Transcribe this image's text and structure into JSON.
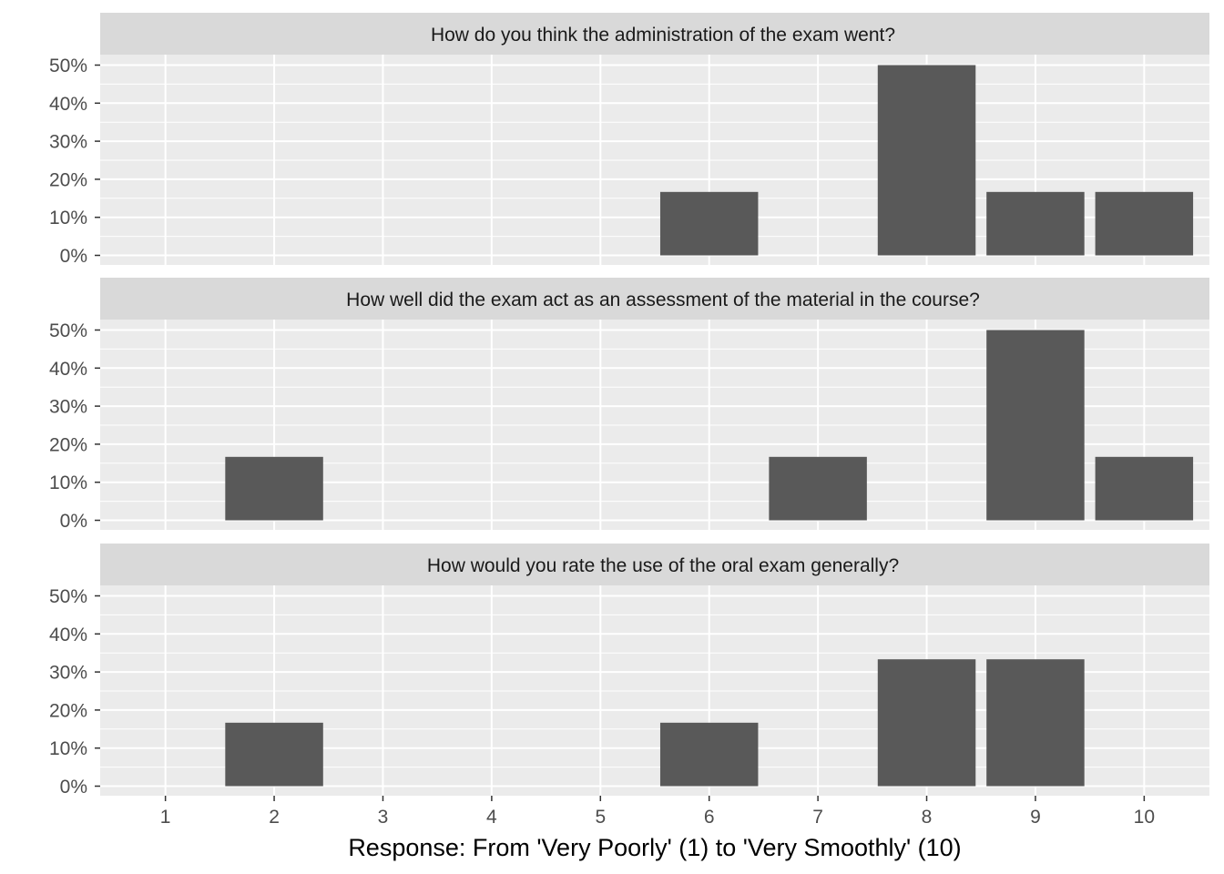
{
  "chart_data": {
    "type": "bar",
    "xlabel": "Response: From 'Very Poorly' (1) to 'Very Smoothly' (10)",
    "x_ticks": [
      "1",
      "2",
      "3",
      "4",
      "5",
      "6",
      "7",
      "8",
      "9",
      "10"
    ],
    "y_ticks": [
      "0%",
      "10%",
      "20%",
      "30%",
      "40%",
      "50%"
    ],
    "ylim": [
      0,
      0.5
    ],
    "grid": true,
    "colors": {
      "panel_bg": "#ebebeb",
      "strip_bg": "#d9d9d9",
      "bar": "#595959",
      "grid": "#ffffff"
    },
    "panels": [
      {
        "title": "How do you think the administration of the exam went?",
        "categories": [
          6,
          8,
          9,
          10
        ],
        "values": [
          0.1667,
          0.5,
          0.1667,
          0.1667
        ]
      },
      {
        "title": "How well did the exam act as an assessment of the material in the course?",
        "categories": [
          2,
          7,
          9,
          10
        ],
        "values": [
          0.1667,
          0.1667,
          0.5,
          0.1667
        ]
      },
      {
        "title": "How would you rate the use of the oral exam generally?",
        "categories": [
          2,
          6,
          8,
          9
        ],
        "values": [
          0.1667,
          0.1667,
          0.3333,
          0.3333
        ]
      }
    ]
  }
}
